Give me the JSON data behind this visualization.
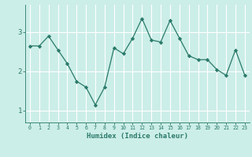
{
  "x": [
    0,
    1,
    2,
    3,
    4,
    5,
    6,
    7,
    8,
    9,
    10,
    11,
    12,
    13,
    14,
    15,
    16,
    17,
    18,
    19,
    20,
    21,
    22,
    23
  ],
  "y": [
    2.65,
    2.65,
    2.9,
    2.55,
    2.2,
    1.75,
    1.6,
    1.15,
    1.6,
    2.6,
    2.45,
    2.85,
    3.35,
    2.8,
    2.75,
    3.3,
    2.85,
    2.4,
    2.3,
    2.3,
    2.05,
    1.9,
    2.55,
    1.9
  ],
  "line_color": "#2a7a6a",
  "marker": "D",
  "marker_size": 2.2,
  "xlabel": "Humidex (Indice chaleur)",
  "xlim": [
    -0.5,
    23.5
  ],
  "ylim": [
    0.7,
    3.7
  ],
  "yticks": [
    1,
    2,
    3
  ],
  "xticks": [
    0,
    1,
    2,
    3,
    4,
    5,
    6,
    7,
    8,
    9,
    10,
    11,
    12,
    13,
    14,
    15,
    16,
    17,
    18,
    19,
    20,
    21,
    22,
    23
  ],
  "background_color": "#cceee8",
  "grid_color": "#ffffff",
  "tick_color": "#2a7a6a",
  "label_color": "#2a7a6a"
}
